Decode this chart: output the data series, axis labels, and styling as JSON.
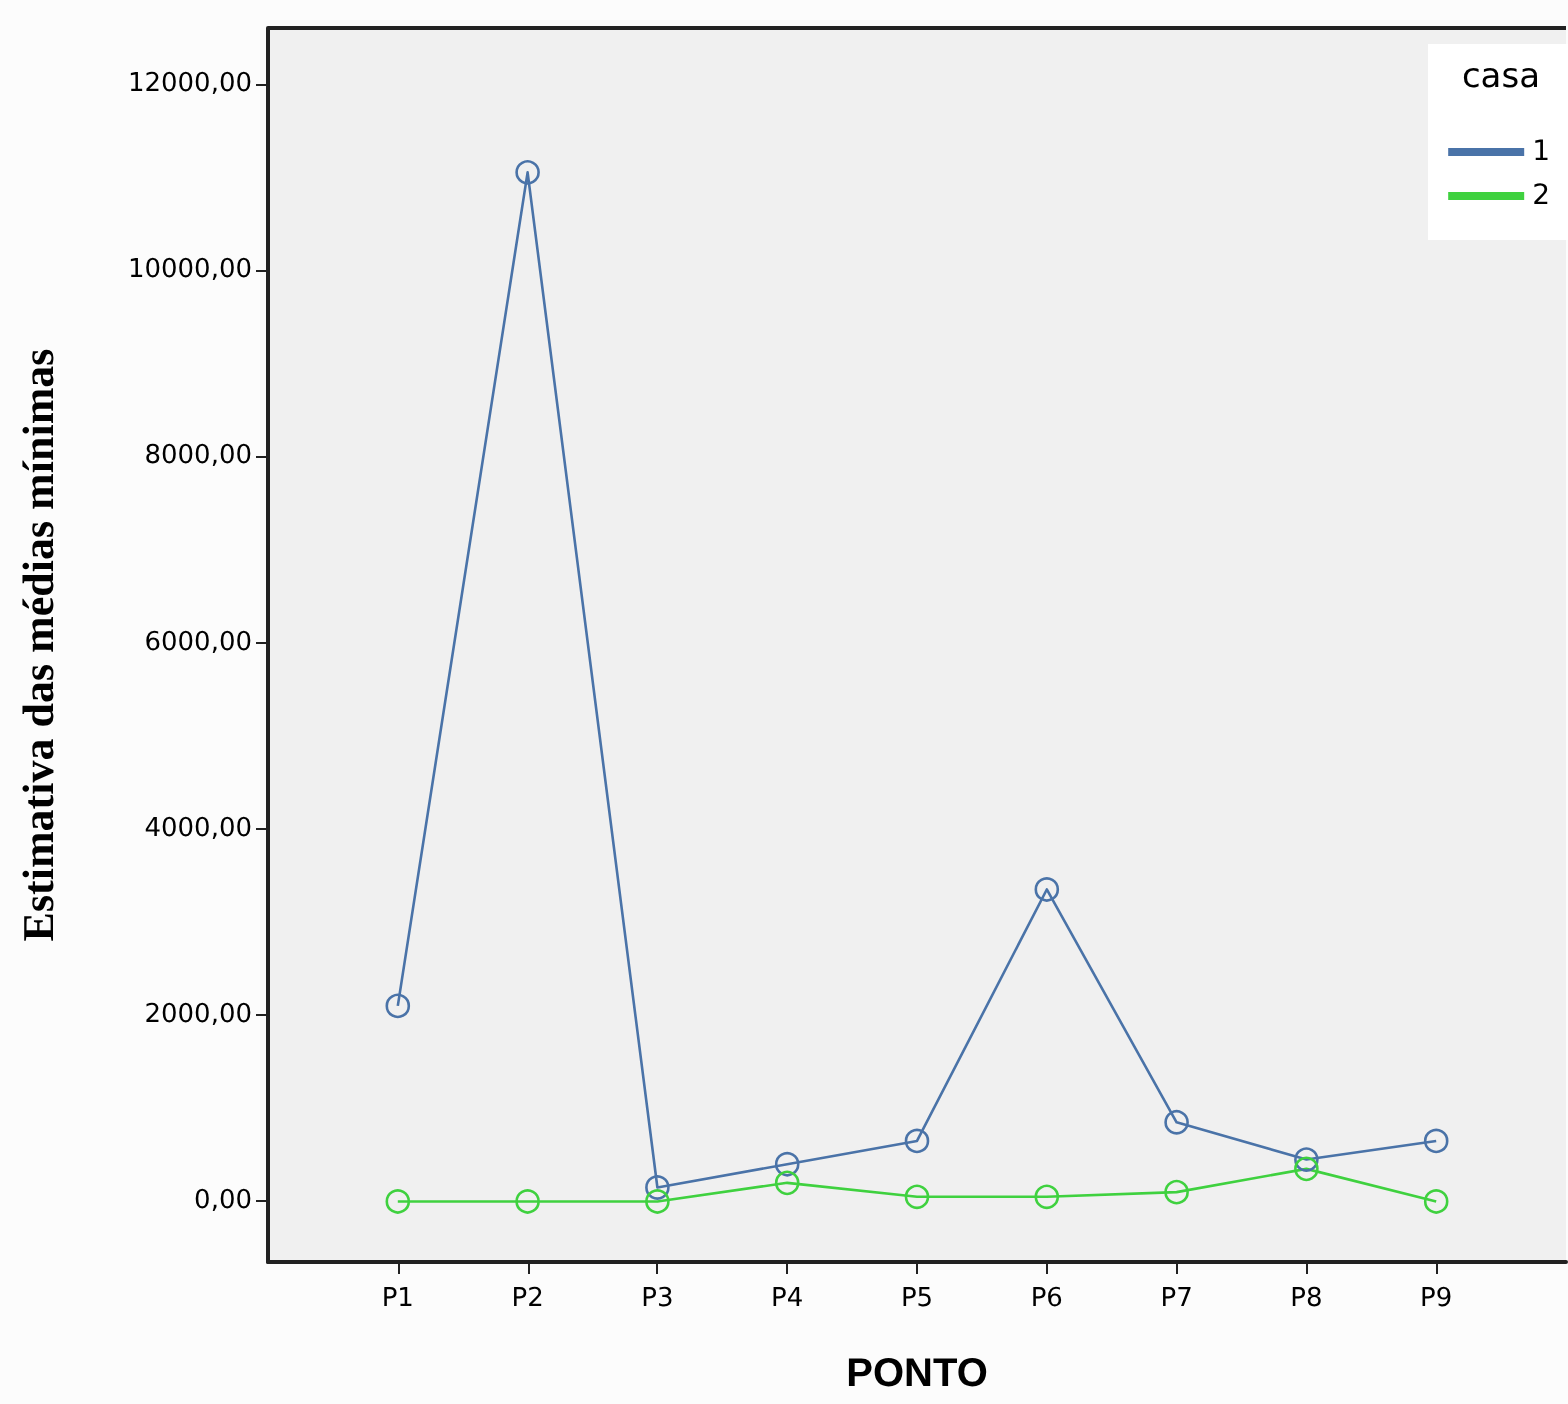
{
  "chart_data": {
    "type": "line",
    "xlabel": "PONTO",
    "ylabel": "Estimativa das médias mínimas",
    "legend_title": "casa",
    "categories": [
      "P1",
      "P2",
      "P3",
      "P4",
      "P5",
      "P6",
      "P7",
      "P8",
      "P9"
    ],
    "series": [
      {
        "name": "1",
        "color": "#4a73a8",
        "values": [
          2100,
          11050,
          150,
          400,
          650,
          3350,
          850,
          450,
          650
        ]
      },
      {
        "name": "2",
        "color": "#3fd13f",
        "values": [
          0,
          0,
          0,
          200,
          50,
          50,
          100,
          350,
          0
        ]
      }
    ],
    "ylim": [
      -650,
      12600
    ],
    "yticks": [
      {
        "value": 0,
        "label": "0,00"
      },
      {
        "value": 2000,
        "label": "2000,00"
      },
      {
        "value": 4000,
        "label": "4000,00"
      },
      {
        "value": 6000,
        "label": "6000,00"
      },
      {
        "value": 8000,
        "label": "8000,00"
      },
      {
        "value": 10000,
        "label": "10000,00"
      },
      {
        "value": 12000,
        "label": "12000,00"
      }
    ],
    "grid": false,
    "legend": "top right",
    "marker": "circle",
    "line_style": "solid"
  }
}
